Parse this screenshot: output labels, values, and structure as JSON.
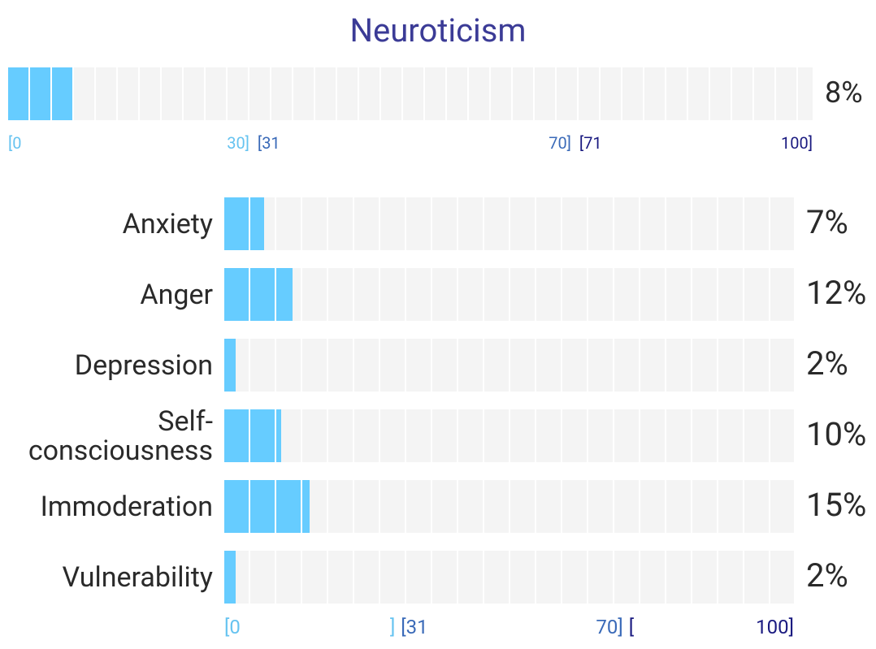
{
  "chart_data": [
    {
      "type": "bar",
      "title": "Neuroticism",
      "categories": [
        null
      ],
      "values": [
        8
      ],
      "value_labels": [
        "8%"
      ],
      "color": "#66ccff",
      "xlim": [
        0,
        100
      ],
      "xticks": [
        {
          "value": 0,
          "label": "[0",
          "color": "#66c3f0"
        },
        {
          "value": 30,
          "label": "30]",
          "color": "#66c3f0"
        },
        {
          "value": 31,
          "label": "[31",
          "color": "#3a6ab8"
        },
        {
          "value": 70,
          "label": "70]",
          "color": "#3a6ab8"
        },
        {
          "value": 71,
          "label": "[71",
          "color": "#1a1a80"
        },
        {
          "value": 100,
          "label": "100]",
          "color": "#1a1a80"
        }
      ]
    },
    {
      "type": "bar",
      "categories": [
        "Anxiety",
        "Anger",
        "Depression",
        "Self-consciousness",
        "Immoderation",
        "Vulnerability"
      ],
      "values": [
        7,
        12,
        2,
        10,
        15,
        2
      ],
      "value_labels": [
        "7%",
        "12%",
        "2%",
        "10%",
        "15%",
        "2%"
      ],
      "color": "#66ccff",
      "xlim": [
        0,
        100
      ],
      "xticks": [
        {
          "value": 0,
          "label": "[0",
          "color": "#66c3f0"
        },
        {
          "value": 30,
          "label": "]",
          "color": "#66c3f0"
        },
        {
          "value": 31,
          "label": "[31",
          "color": "#3a6ab8"
        },
        {
          "value": 70,
          "label": "70]",
          "color": "#3a6ab8"
        },
        {
          "value": 71,
          "label": "[",
          "color": "#1a1a80"
        },
        {
          "value": 100,
          "label": "100]",
          "color": "#1a1a80"
        }
      ]
    }
  ]
}
